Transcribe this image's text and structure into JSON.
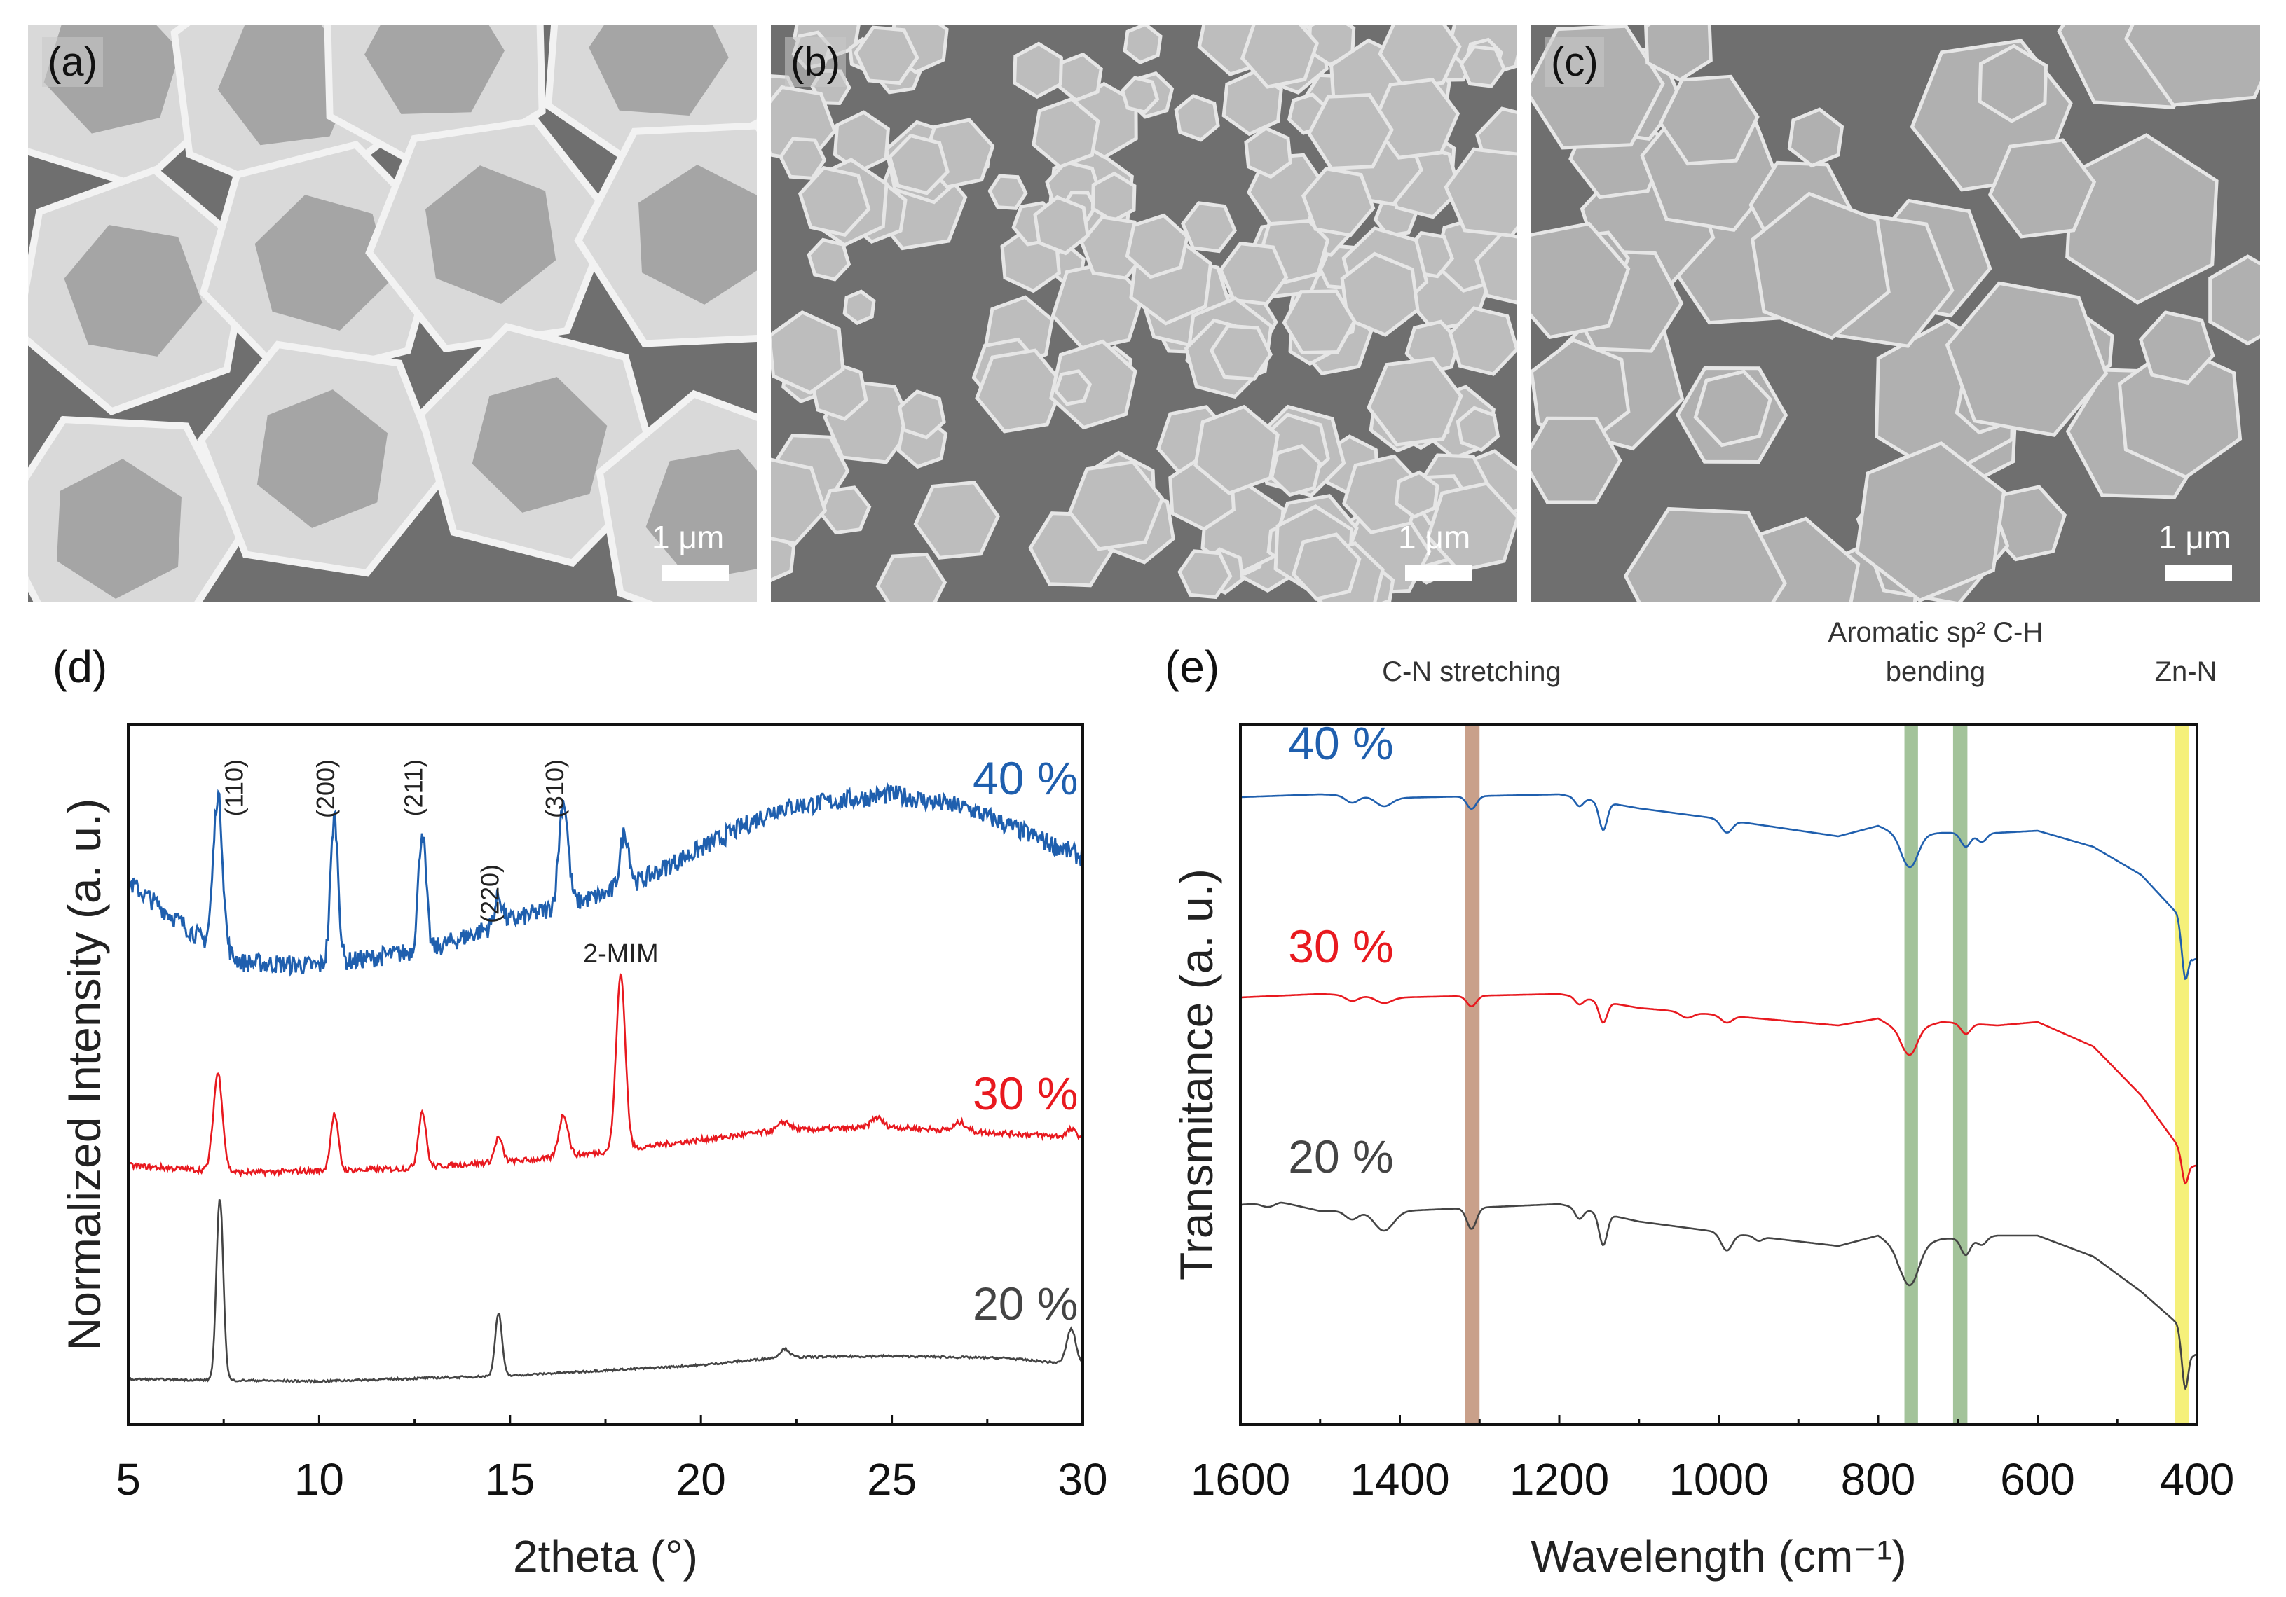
{
  "sem_panels": [
    {
      "label": "(a)",
      "scale_bar": "1 μm"
    },
    {
      "label": "(b)",
      "scale_bar": "1 μm"
    },
    {
      "label": "(c)",
      "scale_bar": "1 μm"
    }
  ],
  "colors": {
    "s40": "#1f5fae",
    "s30": "#e8191f",
    "s20": "#444444",
    "cn": "#c9a08a",
    "ch": "#a3c39a",
    "znn": "#f5f07a"
  },
  "chart_data": [
    {
      "panel_label": "(d)",
      "type": "line",
      "xlabel": "2theta (°)",
      "ylabel": "Normalized Intensity (a. u.)",
      "xlim": [
        5,
        30
      ],
      "ylim": [
        0,
        100
      ],
      "xticks": [
        5,
        10,
        15,
        20,
        25,
        30
      ],
      "xtick_labels": [
        "5",
        "10",
        "15",
        "20",
        "25",
        "30"
      ],
      "annotations": [
        {
          "text": "(110)",
          "x": 8.0,
          "y": 95
        },
        {
          "text": "(200)",
          "x": 10.4,
          "y": 95
        },
        {
          "text": "(211)",
          "x": 12.7,
          "y": 95
        },
        {
          "text": "(220)",
          "x": 14.7,
          "y": 80
        },
        {
          "text": "(310)",
          "x": 16.4,
          "y": 95
        },
        {
          "text": "2-MIM",
          "x": 17.9,
          "y": 66
        }
      ],
      "series": [
        {
          "name": "40 %",
          "color_key": "s40",
          "noise": 1.4,
          "baseline": [
            [
              5,
              77.5
            ],
            [
              7,
              69
            ],
            [
              8,
              66
            ],
            [
              10,
              65.5
            ],
            [
              13,
              68
            ],
            [
              15,
              72
            ],
            [
              18,
              76.5
            ],
            [
              22,
              88
            ],
            [
              25,
              90
            ],
            [
              27,
              88
            ],
            [
              30,
              81
            ]
          ],
          "peaks": [
            [
              7.35,
              22,
              0.12
            ],
            [
              10.4,
              21,
              0.1
            ],
            [
              12.7,
              17,
              0.1
            ],
            [
              14.7,
              4,
              0.1
            ],
            [
              16.4,
              15,
              0.12
            ],
            [
              18.0,
              8,
              0.12
            ]
          ],
          "label_pos": [
            28.5,
            90
          ]
        },
        {
          "name": "30 %",
          "color_key": "s30",
          "noise": 0.4,
          "baseline": [
            [
              5,
              37
            ],
            [
              8,
              36
            ],
            [
              12,
              36.5
            ],
            [
              16,
              38
            ],
            [
              19,
              40
            ],
            [
              22,
              42
            ],
            [
              25,
              42.5
            ],
            [
              30,
              41
            ]
          ],
          "peaks": [
            [
              7.35,
              14,
              0.12
            ],
            [
              10.4,
              8,
              0.1
            ],
            [
              12.7,
              8,
              0.1
            ],
            [
              14.7,
              3.5,
              0.1
            ],
            [
              16.4,
              6,
              0.12
            ],
            [
              17.9,
              25,
              0.12
            ],
            [
              22.2,
              1.2,
              0.15
            ],
            [
              24.6,
              1.4,
              0.15
            ],
            [
              26.8,
              1.2,
              0.15
            ],
            [
              29.7,
              1,
              0.12
            ]
          ],
          "label_pos": [
            28.5,
            45
          ]
        },
        {
          "name": "20 %",
          "color_key": "s20",
          "noise": 0.15,
          "baseline": [
            [
              5,
              6.5
            ],
            [
              10,
              6.2
            ],
            [
              15,
              7
            ],
            [
              20,
              8.5
            ],
            [
              22,
              9.6
            ],
            [
              25,
              9.8
            ],
            [
              28,
              9.5
            ],
            [
              30,
              8.5
            ]
          ],
          "peaks": [
            [
              7.4,
              26,
              0.09
            ],
            [
              14.7,
              9,
              0.09
            ],
            [
              22.2,
              1.2,
              0.12
            ],
            [
              29.7,
              5,
              0.12
            ]
          ],
          "label_pos": [
            28.5,
            15
          ]
        }
      ]
    },
    {
      "panel_label": "(e)",
      "type": "line",
      "xlabel": "Wavelength (cm⁻¹)",
      "ylabel": "Transmitance (a. u.)",
      "xlim": [
        1600,
        400
      ],
      "ylim": [
        0,
        100
      ],
      "xticks": [
        1600,
        1400,
        1200,
        1000,
        800,
        600,
        400
      ],
      "xtick_labels": [
        "1600",
        "1400",
        "1200",
        "1000",
        "800",
        "600",
        "400"
      ],
      "bands": [
        {
          "name": "C-N stretching",
          "from": 1318,
          "to": 1300,
          "color_key": "cn"
        },
        {
          "name": "Aromatic sp² C-H bending",
          "from": 767,
          "to": 750,
          "color_key": "ch"
        },
        {
          "name": "Aromatic sp² C-H bending",
          "from": 706,
          "to": 688,
          "color_key": "ch"
        },
        {
          "name": "Zn-N",
          "from": 428,
          "to": 410,
          "color_key": "znn"
        }
      ],
      "band_labels": [
        {
          "text": "C-N stretching",
          "x": 1310
        },
        {
          "text": "Aromatic sp² C-H",
          "x": 728,
          "line": 1
        },
        {
          "text": "bending",
          "x": 728
        },
        {
          "text": "Zn-N",
          "x": 414
        }
      ],
      "series": [
        {
          "name": "40 %",
          "color_key": "s40",
          "baseline": [
            [
              1600,
              89.6
            ],
            [
              1500,
              90
            ],
            [
              1400,
              89.5
            ],
            [
              1200,
              90
            ],
            [
              1100,
              88
            ],
            [
              1000,
              86.5
            ],
            [
              850,
              84
            ],
            [
              800,
              85.5
            ],
            [
              770,
              84
            ],
            [
              720,
              84.5
            ],
            [
              650,
              84.5
            ],
            [
              600,
              84.8
            ],
            [
              530,
              82.5
            ],
            [
              470,
              78.5
            ],
            [
              425,
              73
            ],
            [
              405,
              66.5
            ],
            [
              400,
              66.5
            ]
          ],
          "dips": [
            [
              1460,
              1,
              8
            ],
            [
              1420,
              1.3,
              10
            ],
            [
              1310,
              1.8,
              6
            ],
            [
              1175,
              1.2,
              5
            ],
            [
              1145,
              4,
              5
            ],
            [
              990,
              1.8,
              7
            ],
            [
              760,
              4.5,
              10
            ],
            [
              690,
              2,
              6
            ],
            [
              670,
              1.3,
              6
            ],
            [
              415,
              6,
              4
            ]
          ],
          "label_pos": [
            1540,
            95
          ]
        },
        {
          "name": "30 %",
          "color_key": "s30",
          "baseline": [
            [
              1600,
              61
            ],
            [
              1500,
              61.5
            ],
            [
              1400,
              61
            ],
            [
              1200,
              61.5
            ],
            [
              1100,
              59.5
            ],
            [
              1000,
              58.5
            ],
            [
              850,
              57
            ],
            [
              800,
              58
            ],
            [
              770,
              56
            ],
            [
              720,
              57.5
            ],
            [
              650,
              57
            ],
            [
              600,
              57.5
            ],
            [
              530,
              54
            ],
            [
              470,
              47
            ],
            [
              425,
              40
            ],
            [
              405,
              37
            ],
            [
              400,
              37
            ]
          ],
          "dips": [
            [
              1460,
              0.8,
              8
            ],
            [
              1420,
              0.9,
              10
            ],
            [
              1310,
              1.5,
              6
            ],
            [
              1175,
              1,
              5
            ],
            [
              1145,
              3,
              5
            ],
            [
              1040,
              0.8,
              8
            ],
            [
              990,
              1,
              7
            ],
            [
              760,
              3.5,
              9
            ],
            [
              690,
              1.5,
              6
            ],
            [
              415,
              4,
              4
            ]
          ],
          "label_pos": [
            1540,
            66
          ]
        },
        {
          "name": "20 %",
          "color_key": "s20",
          "baseline": [
            [
              1600,
              31.4
            ],
            [
              1550,
              31.8
            ],
            [
              1500,
              30.5
            ],
            [
              1400,
              30.5
            ],
            [
              1200,
              31.5
            ],
            [
              1100,
              29
            ],
            [
              1000,
              27.5
            ],
            [
              850,
              25.5
            ],
            [
              800,
              27
            ],
            [
              775,
              25
            ],
            [
              720,
              26.5
            ],
            [
              650,
              27
            ],
            [
              600,
              27
            ],
            [
              530,
              24
            ],
            [
              470,
              19
            ],
            [
              425,
              14.5
            ],
            [
              405,
              10
            ],
            [
              400,
              10
            ]
          ],
          "dips": [
            [
              1565,
              0.6,
              8
            ],
            [
              1460,
              1.2,
              8
            ],
            [
              1420,
              2.8,
              12
            ],
            [
              1310,
              3,
              6
            ],
            [
              1175,
              1.5,
              5
            ],
            [
              1145,
              4.5,
              5
            ],
            [
              990,
              2.5,
              7
            ],
            [
              950,
              0.6,
              5
            ],
            [
              760,
              5.5,
              11
            ],
            [
              690,
              2.5,
              6
            ],
            [
              670,
              1.2,
              6
            ],
            [
              415,
              7,
              4
            ]
          ],
          "label_pos": [
            1540,
            36
          ]
        }
      ]
    }
  ]
}
